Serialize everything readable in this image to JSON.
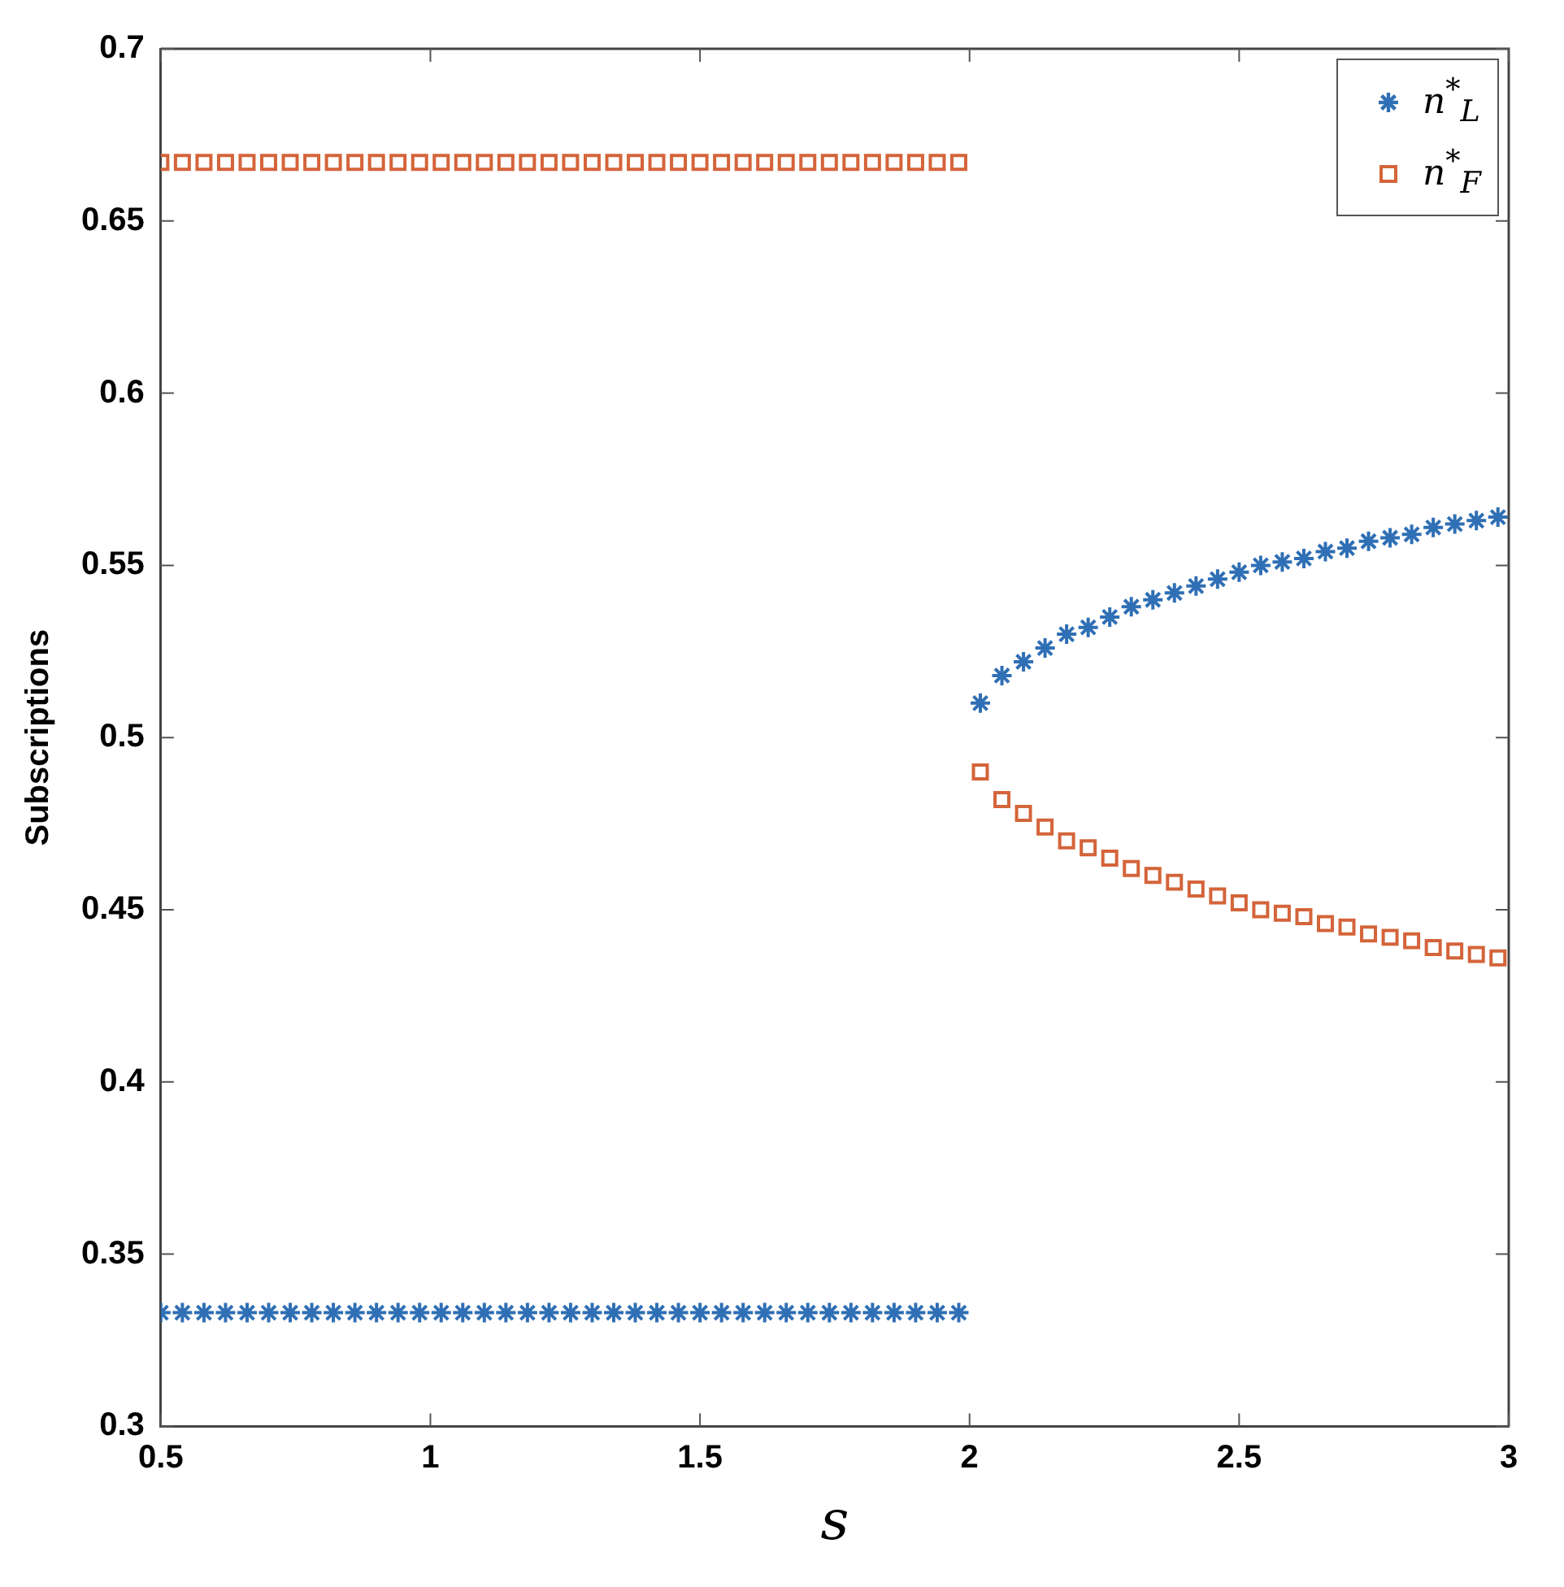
{
  "chart_data": {
    "type": "scatter",
    "xlabel": "s",
    "ylabel": "Subscriptions",
    "xlim": [
      0.5,
      3
    ],
    "ylim": [
      0.3,
      0.7
    ],
    "xticks": [
      0.5,
      1,
      1.5,
      2,
      2.5,
      3
    ],
    "yticks": [
      0.3,
      0.35,
      0.4,
      0.45,
      0.5,
      0.55,
      0.6,
      0.65,
      0.7
    ],
    "grid": false,
    "legend": "top right",
    "x": [
      0.5,
      0.54,
      0.58,
      0.62,
      0.66,
      0.7,
      0.74,
      0.78,
      0.82,
      0.86,
      0.9,
      0.94,
      0.98,
      1.02,
      1.06,
      1.1,
      1.14,
      1.18,
      1.22,
      1.26,
      1.3,
      1.34,
      1.38,
      1.42,
      1.46,
      1.5,
      1.54,
      1.58,
      1.62,
      1.66,
      1.7,
      1.74,
      1.78,
      1.82,
      1.86,
      1.9,
      1.94,
      1.98,
      2.02,
      2.06,
      2.1,
      2.14,
      2.18,
      2.22,
      2.26,
      2.3,
      2.34,
      2.38,
      2.42,
      2.46,
      2.5,
      2.54,
      2.58,
      2.62,
      2.66,
      2.7,
      2.74,
      2.78,
      2.82,
      2.86,
      2.9,
      2.94,
      2.98
    ],
    "series": [
      {
        "name": "n$^{*}$$_{L}$",
        "color": "#2f6fb5",
        "marker": "cross",
        "values": [
          0.333,
          0.333,
          0.333,
          0.333,
          0.333,
          0.333,
          0.333,
          0.333,
          0.333,
          0.333,
          0.333,
          0.333,
          0.333,
          0.333,
          0.333,
          0.333,
          0.333,
          0.333,
          0.333,
          0.333,
          0.333,
          0.333,
          0.333,
          0.333,
          0.333,
          0.333,
          0.333,
          0.333,
          0.333,
          0.333,
          0.333,
          0.333,
          0.333,
          0.333,
          0.333,
          0.333,
          0.333,
          0.333,
          0.51,
          0.518,
          0.522,
          0.526,
          0.53,
          0.532,
          0.535,
          0.538,
          0.54,
          0.542,
          0.544,
          0.546,
          0.548,
          0.55,
          0.551,
          0.552,
          0.554,
          0.555,
          0.557,
          0.558,
          0.559,
          0.561,
          0.562,
          0.563,
          0.564
        ]
      },
      {
        "name": "n$^{*}$$_{F}$",
        "color": "#d4643a",
        "marker": "square",
        "values": [
          0.667,
          0.667,
          0.667,
          0.667,
          0.667,
          0.667,
          0.667,
          0.667,
          0.667,
          0.667,
          0.667,
          0.667,
          0.667,
          0.667,
          0.667,
          0.667,
          0.667,
          0.667,
          0.667,
          0.667,
          0.667,
          0.667,
          0.667,
          0.667,
          0.667,
          0.667,
          0.667,
          0.667,
          0.667,
          0.667,
          0.667,
          0.667,
          0.667,
          0.667,
          0.667,
          0.667,
          0.667,
          0.667,
          0.49,
          0.482,
          0.478,
          0.474,
          0.47,
          0.468,
          0.465,
          0.462,
          0.46,
          0.458,
          0.456,
          0.454,
          0.452,
          0.45,
          0.449,
          0.448,
          0.446,
          0.445,
          0.443,
          0.442,
          0.441,
          0.439,
          0.438,
          0.437,
          0.436
        ]
      }
    ]
  }
}
